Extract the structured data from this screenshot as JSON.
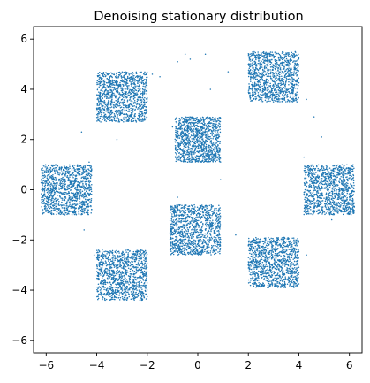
{
  "chart_data": {
    "type": "scatter",
    "title": "Denoising stationary distribution",
    "xlabel": "",
    "ylabel": "",
    "xlim": [
      -6.5,
      6.5
    ],
    "ylim": [
      -6.5,
      6.5
    ],
    "xticks": [
      -6,
      -4,
      -2,
      0,
      2,
      4,
      6
    ],
    "yticks": [
      -6,
      -4,
      -2,
      0,
      2,
      4,
      6
    ],
    "xtick_labels": [
      "−6",
      "−4",
      "−2",
      "0",
      "2",
      "4",
      "6"
    ],
    "ytick_labels": [
      "−6",
      "−4",
      "−2",
      "0",
      "2",
      "4",
      "6"
    ],
    "grid": false,
    "legend": "none",
    "marker_color": "#1f77b4",
    "marker": "point",
    "points_per_cluster": 1100,
    "clusters": [
      {
        "center": [
          0,
          2
        ],
        "half_width": 0.9
      },
      {
        "center": [
          3,
          4.5
        ],
        "half_width": 1.0
      },
      {
        "center": [
          -3,
          3.7
        ],
        "half_width": 1.0
      },
      {
        "center": [
          -5.2,
          0
        ],
        "half_width": 1.0
      },
      {
        "center": [
          5.2,
          0
        ],
        "half_width": 1.0
      },
      {
        "center": [
          -0.1,
          -1.6
        ],
        "half_width": 1.0
      },
      {
        "center": [
          3,
          -2.9
        ],
        "half_width": 1.0
      },
      {
        "center": [
          -3,
          -3.4
        ],
        "half_width": 1.0
      }
    ],
    "outliers": [
      [
        -0.5,
        5.4
      ],
      [
        0.3,
        5.4
      ],
      [
        -0.3,
        5.2
      ],
      [
        -0.8,
        5.1
      ],
      [
        0.5,
        4.0
      ],
      [
        1.2,
        4.7
      ],
      [
        -1.5,
        4.5
      ],
      [
        -1.8,
        4.6
      ],
      [
        4.3,
        3.6
      ],
      [
        4.6,
        2.9
      ],
      [
        4.9,
        2.1
      ],
      [
        4.2,
        1.3
      ],
      [
        -4.3,
        1.1
      ],
      [
        -4.6,
        2.3
      ],
      [
        -3.2,
        2.0
      ],
      [
        -1.0,
        2.5
      ],
      [
        1.5,
        -1.8
      ],
      [
        2.0,
        -3.0
      ],
      [
        4.3,
        -2.6
      ],
      [
        5.3,
        -1.2
      ],
      [
        -4.5,
        -1.6
      ],
      [
        -4.1,
        -2.6
      ],
      [
        -0.8,
        -0.3
      ],
      [
        0.9,
        0.4
      ]
    ]
  }
}
